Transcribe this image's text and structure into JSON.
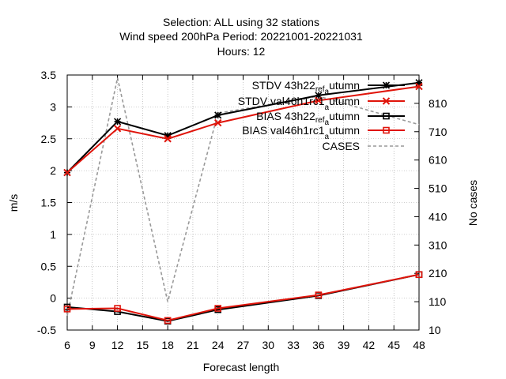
{
  "chart_data": {
    "type": "line",
    "title_lines": [
      "Selection: ALL using    32 stations",
      "Wind speed 200hPa   Period: 20221001-20221031",
      "Hours:  12"
    ],
    "xlabel": "Forecast length",
    "ylabel": "m/s",
    "y2label": "No cases",
    "xlim": [
      6,
      48
    ],
    "ylim": [
      -0.5,
      3.5
    ],
    "y2lim": [
      10,
      910
    ],
    "xticks": [
      6,
      9,
      12,
      15,
      18,
      21,
      24,
      27,
      30,
      33,
      36,
      39,
      42,
      45,
      48
    ],
    "yticks": [
      -0.5,
      0,
      0.5,
      1,
      1.5,
      2,
      2.5,
      3,
      3.5
    ],
    "yticklabels": [
      "-0.5",
      "0",
      "0.5",
      "1",
      "1.5",
      "2",
      "2.5",
      "3",
      "3.5"
    ],
    "y2ticks": [
      10,
      110,
      210,
      310,
      410,
      510,
      610,
      710,
      810
    ],
    "legend_position": "top-right",
    "series": [
      {
        "name": "STDV 43h22_ref_autumn",
        "legend_parts": [
          "STDV 43h22",
          "ref",
          "a",
          "utumn"
        ],
        "color": "#000000",
        "marker": "star",
        "axis": "y",
        "x": [
          6,
          12,
          18,
          24,
          36,
          48
        ],
        "values": [
          1.97,
          2.77,
          2.55,
          2.87,
          3.18,
          3.38
        ]
      },
      {
        "name": "STDV val46h1rc1_autumn",
        "legend_parts": [
          "STDV val46h1rc1",
          "",
          "a",
          "utumn"
        ],
        "color": "#e0140a",
        "marker": "x",
        "axis": "y",
        "x": [
          6,
          12,
          18,
          24,
          36,
          48
        ],
        "values": [
          1.97,
          2.66,
          2.5,
          2.75,
          3.1,
          3.32
        ]
      },
      {
        "name": "BIAS 43h22_ref_autumn",
        "legend_parts": [
          "BIAS 43h22",
          "ref",
          "a",
          "utumn"
        ],
        "color": "#000000",
        "marker": "square",
        "axis": "y",
        "x": [
          6,
          12,
          18,
          24,
          36,
          48
        ],
        "values": [
          -0.14,
          -0.21,
          -0.36,
          -0.18,
          0.04,
          0.37
        ]
      },
      {
        "name": "BIAS val46h1rc1_autumn",
        "legend_parts": [
          "BIAS val46h1rc1",
          "",
          "a",
          "utumn"
        ],
        "color": "#e0140a",
        "marker": "square",
        "axis": "y",
        "x": [
          6,
          12,
          18,
          24,
          36,
          48
        ],
        "values": [
          -0.17,
          -0.16,
          -0.35,
          -0.16,
          0.05,
          0.37
        ]
      },
      {
        "name": "CASES",
        "legend_parts": [
          "CASES",
          "",
          "",
          ""
        ],
        "color": "#999999",
        "marker": "none",
        "dashed": true,
        "axis": "y2",
        "x": [
          6,
          12,
          18,
          24,
          36,
          48
        ],
        "values": [
          60,
          900,
          110,
          775,
          835,
          735
        ]
      }
    ]
  }
}
